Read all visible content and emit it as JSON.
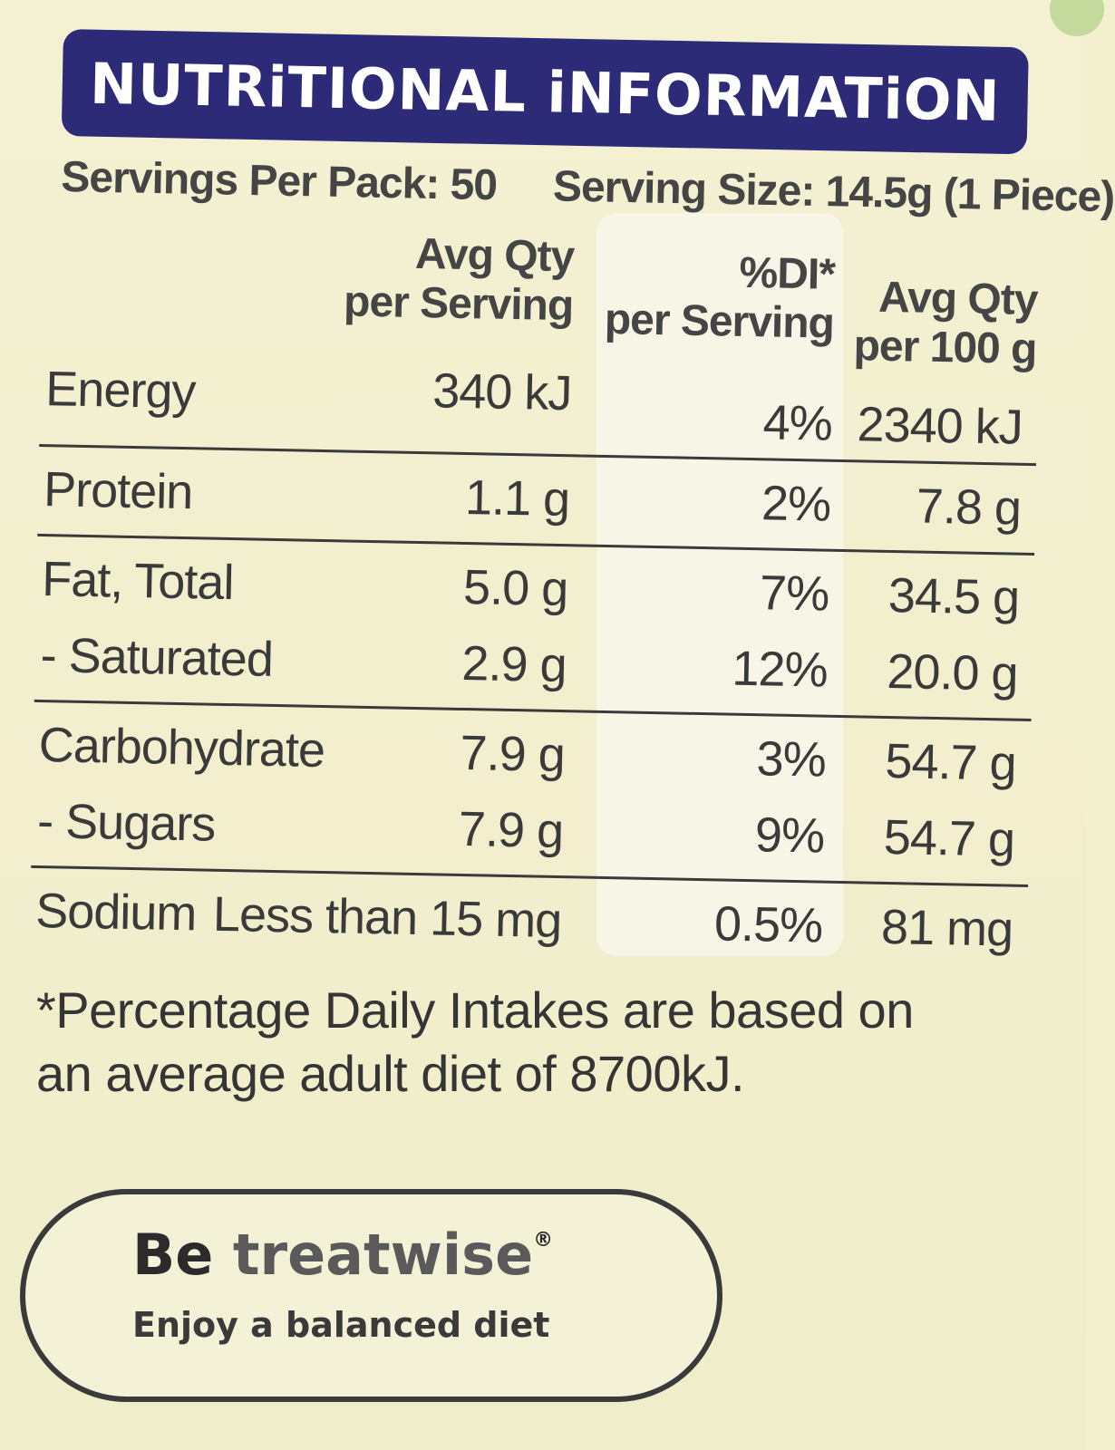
{
  "title": "NUTRiTIONAL iNFORMATiON",
  "servings_per_pack": "Servings Per Pack: 50",
  "serving_size": "Serving Size: 14.5g (1 Piece)",
  "headers": {
    "per_serving_line1": "Avg Qty",
    "per_serving_line2": "per Serving",
    "di_line1": "%DI*",
    "di_line2": "per Serving",
    "per100_line1": "Avg Qty",
    "per100_line2": "per 100 g"
  },
  "rows": [
    {
      "name": "Energy",
      "serving": "340 kJ",
      "di": "4%",
      "per100": "2340 kJ"
    },
    {
      "name": "Protein",
      "serving": "1.1 g",
      "di": "2%",
      "per100": "7.8 g"
    },
    {
      "name": "Fat, Total",
      "serving": "5.0 g",
      "di": "7%",
      "per100": "34.5 g"
    },
    {
      "name": "- Saturated",
      "serving": "2.9 g",
      "di": "12%",
      "per100": "20.0 g"
    },
    {
      "name": "Carbohydrate",
      "serving": "7.9 g",
      "di": "3%",
      "per100": "54.7 g"
    },
    {
      "name": "- Sugars",
      "serving": "7.9 g",
      "di": "9%",
      "per100": "54.7 g"
    },
    {
      "name": "Sodium",
      "serving": "Less than 15 mg",
      "di": "0.5%",
      "per100": "81 mg"
    }
  ],
  "footnote": {
    "line1": "*Percentage Daily Intakes are based on",
    "line2": "an average adult diet of 8700kJ."
  },
  "treatwise": {
    "be": "Be ",
    "treatwise": "treatwise",
    "registered": "®",
    "tagline": "Enjoy a balanced diet"
  }
}
